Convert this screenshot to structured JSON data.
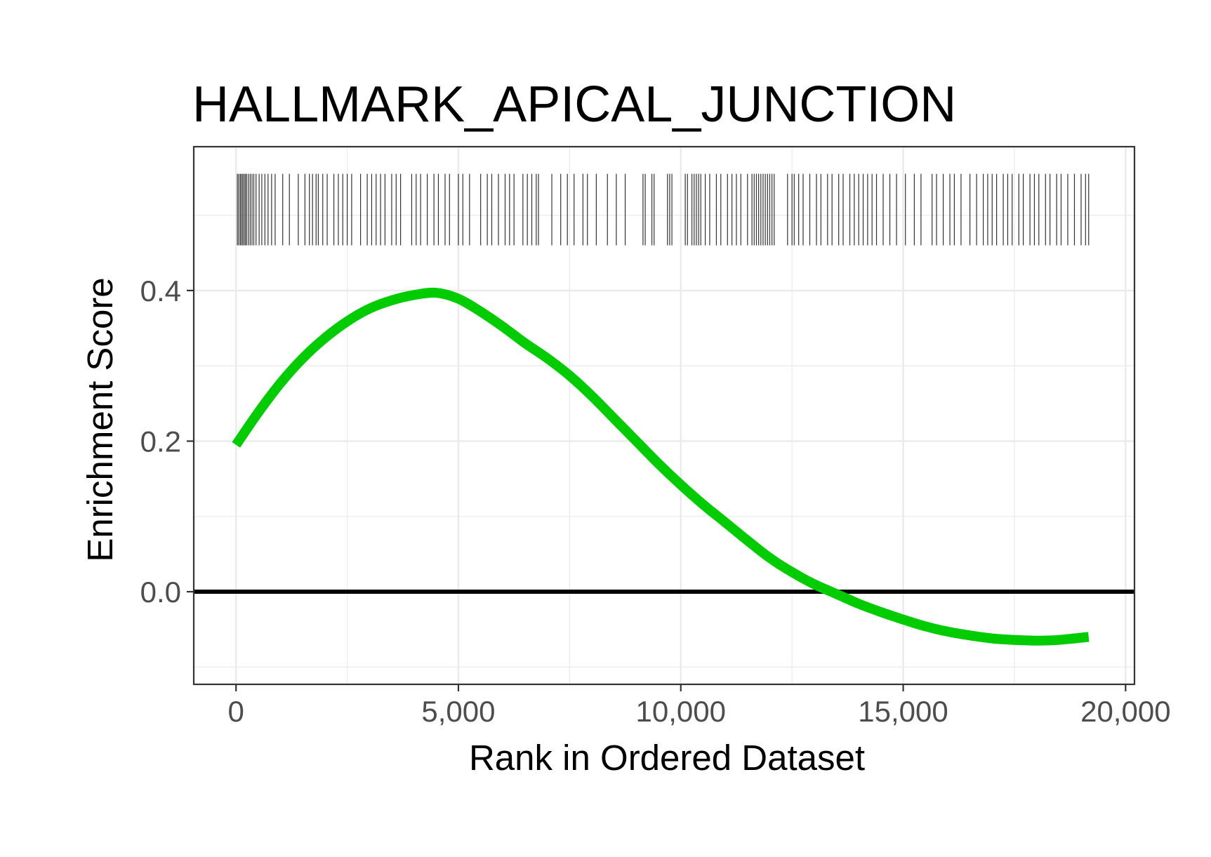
{
  "chart_data": {
    "type": "line",
    "title": "HALLMARK_APICAL_JUNCTION",
    "xlabel": "Rank in Ordered Dataset",
    "ylabel": "Enrichment Score",
    "xlim": [
      -950,
      20200
    ],
    "ylim": [
      -0.123,
      0.591
    ],
    "x_ticks": [
      0,
      5000,
      10000,
      15000,
      20000
    ],
    "x_tick_labels": [
      "0",
      "5,000",
      "10,000",
      "15,000",
      "20,000"
    ],
    "y_ticks": [
      0.0,
      0.2,
      0.4
    ],
    "y_tick_labels": [
      "0.0",
      "0.2",
      "0.4"
    ],
    "grid": true,
    "reference_line_y": 0.0,
    "series": [
      {
        "color": "#00cc00",
        "x": [
          0,
          500,
          1000,
          1500,
          2000,
          2500,
          3000,
          3500,
          4000,
          4500,
          5000,
          5500,
          6000,
          6500,
          7000,
          7500,
          8000,
          8500,
          9000,
          9500,
          10000,
          10500,
          11000,
          11500,
          12000,
          12500,
          13000,
          13500,
          14000,
          14500,
          15000,
          15500,
          16000,
          16500,
          17000,
          17500,
          18000,
          18500,
          19170
        ],
        "y": [
          0.195,
          0.238,
          0.277,
          0.31,
          0.337,
          0.359,
          0.376,
          0.387,
          0.394,
          0.397,
          0.389,
          0.372,
          0.352,
          0.33,
          0.31,
          0.287,
          0.26,
          0.23,
          0.2,
          0.17,
          0.142,
          0.116,
          0.092,
          0.068,
          0.045,
          0.026,
          0.01,
          -0.003,
          -0.016,
          -0.027,
          -0.037,
          -0.046,
          -0.053,
          -0.058,
          -0.062,
          -0.064,
          -0.065,
          -0.064,
          -0.06
        ]
      }
    ],
    "gene_set_hits": [
      30,
      60,
      95,
      120,
      150,
      180,
      210,
      240,
      280,
      320,
      360,
      400,
      450,
      520,
      580,
      650,
      720,
      800,
      880,
      1050,
      1200,
      1400,
      1550,
      1650,
      1720,
      1800,
      1850,
      1950,
      2050,
      2200,
      2300,
      2400,
      2500,
      2600,
      2800,
      2950,
      3050,
      3150,
      3250,
      3350,
      3500,
      3600,
      3700,
      3950,
      4050,
      4150,
      4300,
      4450,
      4550,
      4700,
      4800,
      5000,
      5100,
      5250,
      5500,
      5650,
      5750,
      5900,
      6050,
      6150,
      6250,
      6450,
      6550,
      6650,
      6750,
      6800,
      7100,
      7300,
      7450,
      7600,
      7800,
      7900,
      8100,
      8350,
      8550,
      8750,
      9150,
      9200,
      9350,
      9400,
      9700,
      9750,
      9800,
      10100,
      10150,
      10250,
      10300,
      10350,
      10400,
      10450,
      10550,
      10650,
      10800,
      10900,
      11050,
      11150,
      11250,
      11350,
      11500,
      11600,
      11650,
      11700,
      11750,
      11800,
      11850,
      11900,
      11950,
      12000,
      12050,
      12100,
      12400,
      12500,
      12550,
      12650,
      12750,
      12900,
      13050,
      13150,
      13300,
      13400,
      13550,
      13650,
      13800,
      13900,
      14000,
      14100,
      14200,
      14300,
      14400,
      14550,
      14700,
      14850,
      15050,
      15250,
      15400,
      15650,
      15750,
      15900,
      16050,
      16150,
      16300,
      16500,
      16650,
      16800,
      16900,
      17000,
      17100,
      17250,
      17350,
      17450,
      17600,
      17700,
      17850,
      17950,
      18050,
      18200,
      18300,
      18450,
      18550,
      18700,
      18850,
      19000,
      19100,
      19170
    ]
  }
}
